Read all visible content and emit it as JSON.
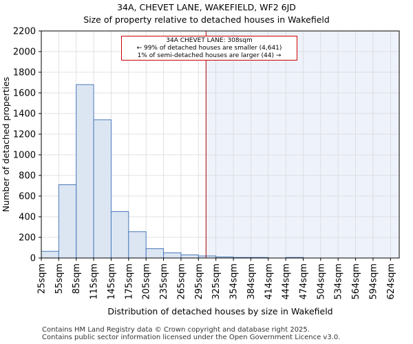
{
  "header": {
    "title": "34A, CHEVET LANE, WAKEFIELD, WF2 6JD",
    "subtitle": "Size of property relative to detached houses in Wakefield"
  },
  "annotation": {
    "line1": "34A CHEVET LANE: 308sqm",
    "line2": "← 99% of detached houses are smaller (4,641)",
    "line3": "1% of semi-detached houses are larger (44) →"
  },
  "footer": {
    "line1": "Contains HM Land Registry data © Crown copyright and database right 2025.",
    "line2": "Contains public sector information licensed under the Open Government Licence v3.0."
  },
  "colors": {
    "bar_fill": "#dce6f3",
    "bar_stroke": "#4a78b8",
    "highlight_fill": "#eef2fa",
    "marker": "#aa0000",
    "grid": "#d9d9d9"
  },
  "chart_data": {
    "type": "bar",
    "title": "34A, CHEVET LANE, WAKEFIELD, WF2 6JD",
    "subtitle": "Size of property relative to detached houses in Wakefield",
    "xlabel": "Distribution of detached houses by size in Wakefield",
    "ylabel": "Number of detached properties",
    "categories": [
      "25sqm",
      "55sqm",
      "85sqm",
      "115sqm",
      "145sqm",
      "175sqm",
      "205sqm",
      "235sqm",
      "265sqm",
      "295sqm",
      "325sqm",
      "354sqm",
      "384sqm",
      "414sqm",
      "444sqm",
      "474sqm",
      "504sqm",
      "534sqm",
      "564sqm",
      "594sqm",
      "624sqm"
    ],
    "values": [
      65,
      710,
      1680,
      1340,
      450,
      255,
      90,
      50,
      30,
      20,
      10,
      5,
      5,
      0,
      5,
      0,
      0,
      0,
      0,
      0,
      0
    ],
    "ylim": [
      0,
      2200
    ],
    "yticks": [
      0,
      200,
      400,
      600,
      800,
      1000,
      1200,
      1400,
      1600,
      1800,
      2000,
      2200
    ],
    "marker_value": 308,
    "marker_label": "34A CHEVET LANE: 308sqm",
    "grid": true
  }
}
